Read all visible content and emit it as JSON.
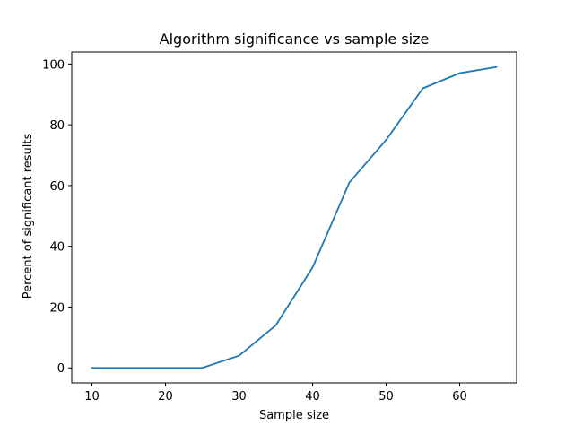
{
  "chart_data": {
    "type": "line",
    "title": "Algorithm significance vs sample size",
    "xlabel": "Sample size",
    "ylabel": "Percent of significant results",
    "xlim": [
      7.25,
      67.75
    ],
    "ylim": [
      -4.95,
      103.95
    ],
    "xticks": [
      10,
      20,
      30,
      40,
      50,
      60
    ],
    "yticks": [
      0,
      20,
      40,
      60,
      80,
      100
    ],
    "grid": false,
    "legend": "none",
    "series": [
      {
        "color": "#1f77b4",
        "x": [
          10,
          15,
          20,
          25,
          30,
          35,
          40,
          45,
          50,
          55,
          60,
          65
        ],
        "y": [
          0,
          0,
          0,
          0,
          4,
          14,
          33,
          61,
          75,
          92,
          97,
          99
        ]
      }
    ]
  }
}
